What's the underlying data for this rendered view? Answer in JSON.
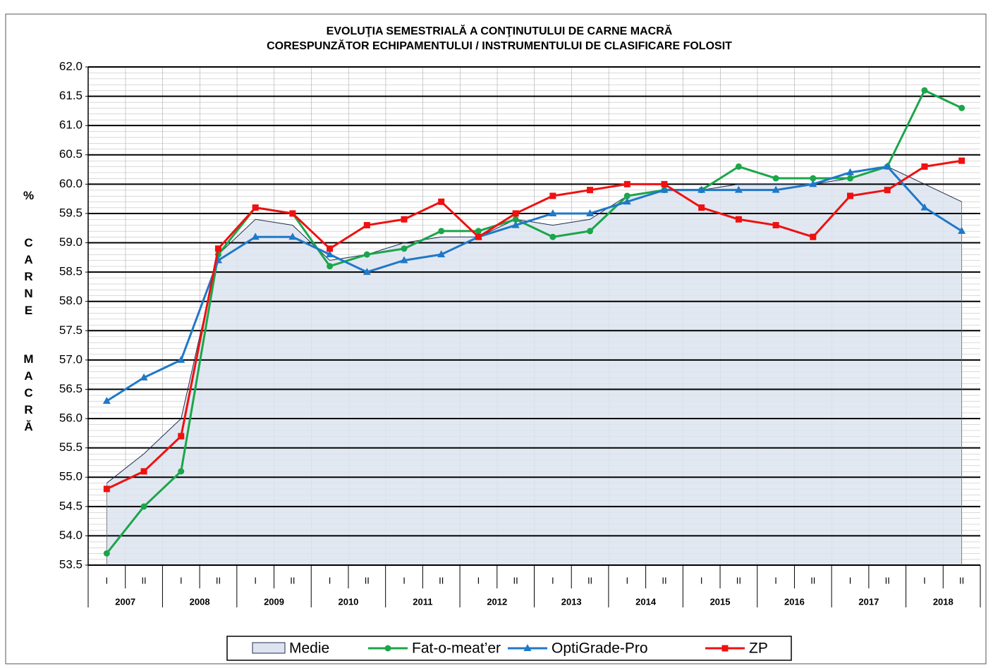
{
  "chart_data": {
    "type": "line",
    "title": [
      "EVOLUŢIA SEMESTRIALĂ A CONŢINUTULUI DE CARNE MACRĂ",
      "CORESPUNZĂTOR  ECHIPAMENTULUI /  INSTRUMENTULUI DE CLASIFICARE FOLOSIT"
    ],
    "ylabel": [
      "%",
      "CARNE",
      "MACRĂ"
    ],
    "categories": [
      "I",
      "II",
      "I",
      "II",
      "I",
      "II",
      "I",
      "II",
      "I",
      "II",
      "I",
      "II",
      "I",
      "II",
      "I",
      "II",
      "I",
      "II",
      "I",
      "II",
      "I",
      "II",
      "I",
      "II"
    ],
    "years": [
      "2007",
      "2008",
      "2009",
      "2010",
      "2011",
      "2012",
      "2013",
      "2014",
      "2015",
      "2016",
      "2017",
      "2018"
    ],
    "ylim": [
      53.5,
      62.0
    ],
    "yticks": [
      53.5,
      {
        "value": 54,
        "label": "54.0"
      },
      54.5,
      {
        "value": 55,
        "label": "55.0"
      },
      55.5,
      {
        "value": 56,
        "label": "56.0"
      },
      56.5,
      {
        "value": 57,
        "label": "57.0"
      },
      57.5,
      {
        "value": 58,
        "label": "58.0"
      },
      58.5,
      {
        "value": 59,
        "label": "59.0"
      },
      59.5,
      {
        "value": 60,
        "label": "60.0"
      },
      60.5,
      {
        "value": 61,
        "label": "61.0"
      },
      61.5,
      {
        "value": 62,
        "label": "62.0"
      }
    ],
    "grid": true,
    "series": [
      {
        "name": "Medie",
        "style": "area",
        "color": "#1f2d4d",
        "fill": "#dde4ef",
        "values": [
          54.9,
          55.4,
          56.0,
          58.8,
          59.4,
          59.3,
          58.7,
          58.8,
          59.0,
          59.1,
          59.1,
          59.4,
          59.3,
          59.4,
          59.8,
          59.9,
          59.9,
          60.0,
          60.0,
          60.0,
          60.1,
          60.3,
          60.0,
          59.7
        ]
      },
      {
        "name": "Fat-o-meat’er",
        "style": "line",
        "marker": "circle",
        "color": "#1aa64a",
        "values": [
          53.7,
          54.5,
          55.1,
          58.8,
          59.6,
          59.5,
          58.6,
          58.8,
          58.9,
          59.2,
          59.2,
          59.4,
          59.1,
          59.2,
          59.8,
          59.9,
          59.9,
          60.3,
          60.1,
          60.1,
          60.1,
          60.3,
          61.6,
          61.3
        ]
      },
      {
        "name": "OptiGrade-Pro",
        "style": "line",
        "marker": "triangle",
        "color": "#1f78c8",
        "values": [
          56.3,
          56.7,
          57.0,
          58.7,
          59.1,
          59.1,
          58.8,
          58.5,
          58.7,
          58.8,
          59.1,
          59.3,
          59.5,
          59.5,
          59.7,
          59.9,
          59.9,
          59.9,
          59.9,
          60.0,
          60.2,
          60.3,
          59.6,
          59.2
        ]
      },
      {
        "name": "ZP",
        "style": "line",
        "marker": "square",
        "color": "#f01010",
        "values": [
          54.8,
          55.1,
          55.7,
          58.9,
          59.6,
          59.5,
          58.9,
          59.3,
          59.4,
          59.7,
          59.1,
          59.5,
          59.8,
          59.9,
          60.0,
          60.0,
          59.6,
          59.4,
          59.3,
          59.1,
          59.8,
          59.9,
          60.3,
          60.4
        ]
      }
    ]
  }
}
